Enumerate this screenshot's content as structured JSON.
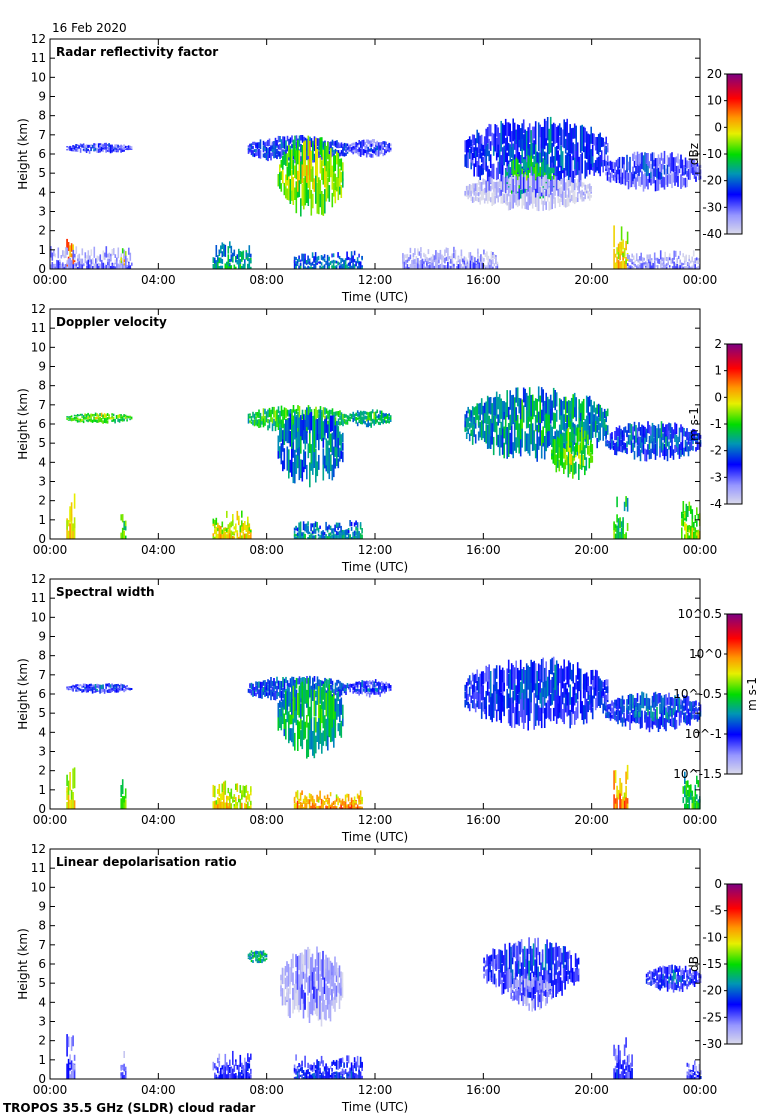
{
  "date": "16 Feb 2020",
  "footer": "TROPOS 35.5 GHz (SLDR) cloud radar",
  "chart_data": [
    {
      "type": "heatmap",
      "title": "Radar reflectivity factor",
      "xlabel": "Time (UTC)",
      "ylabel": "Height (km)",
      "xlim": [
        0,
        24
      ],
      "ylim": [
        0,
        12
      ],
      "xticks": [
        "00:00",
        "04:00",
        "08:00",
        "12:00",
        "16:00",
        "20:00",
        "00:00"
      ],
      "yticks": [
        "0",
        "1",
        "2",
        "3",
        "4",
        "5",
        "6",
        "7",
        "8",
        "9",
        "10",
        "11",
        "12"
      ],
      "colorbar": {
        "label": "dBz",
        "range": [
          -40,
          20
        ],
        "ticks": [
          "20",
          "10",
          "0",
          "-10",
          "-20",
          "-30",
          "-40"
        ]
      },
      "regions": [
        {
          "t": [
            0.6,
            0.9
          ],
          "z": [
            0,
            2.5
          ],
          "v": 2
        },
        {
          "t": [
            2.6,
            2.8
          ],
          "z": [
            0,
            1.6
          ],
          "v": -5
        },
        {
          "t": [
            0.6,
            3.0
          ],
          "z": [
            6.0,
            6.6
          ],
          "v": -30
        },
        {
          "t": [
            0.0,
            3.0
          ],
          "z": [
            0,
            1.2
          ],
          "v": -38
        },
        {
          "t": [
            6.0,
            7.4
          ],
          "z": [
            0,
            1.5
          ],
          "v": -20
        },
        {
          "t": [
            7.3,
            11.0
          ],
          "z": [
            5.5,
            7.0
          ],
          "v": -25
        },
        {
          "t": [
            8.4,
            10.8
          ],
          "z": [
            2.6,
            7.0
          ],
          "v": -8
        },
        {
          "t": [
            11.0,
            12.6
          ],
          "z": [
            5.8,
            6.8
          ],
          "v": -30
        },
        {
          "t": [
            9.0,
            11.5
          ],
          "z": [
            0,
            1.0
          ],
          "v": -24
        },
        {
          "t": [
            13.0,
            16.5
          ],
          "z": [
            0,
            1.2
          ],
          "v": -38
        },
        {
          "t": [
            15.3,
            20.6
          ],
          "z": [
            4.0,
            8.0
          ],
          "v": -26
        },
        {
          "t": [
            16.8,
            18.6
          ],
          "z": [
            3.5,
            6.0
          ],
          "v": -14
        },
        {
          "t": [
            15.3,
            20.0
          ],
          "z": [
            3.0,
            5.0
          ],
          "v": -38
        },
        {
          "t": [
            20.5,
            24.0
          ],
          "z": [
            4.0,
            6.2
          ],
          "v": -30
        },
        {
          "t": [
            20.8,
            21.3
          ],
          "z": [
            0,
            2.3
          ],
          "v": -5
        },
        {
          "t": [
            21.3,
            24.0
          ],
          "z": [
            0,
            1.0
          ],
          "v": -38
        }
      ]
    },
    {
      "type": "heatmap",
      "title": "Doppler velocity",
      "xlabel": "Time (UTC)",
      "ylabel": "Height (km)",
      "xlim": [
        0,
        24
      ],
      "ylim": [
        0,
        12
      ],
      "xticks": [
        "00:00",
        "04:00",
        "08:00",
        "12:00",
        "16:00",
        "20:00",
        "00:00"
      ],
      "yticks": [
        "0",
        "1",
        "2",
        "3",
        "4",
        "5",
        "6",
        "7",
        "8",
        "9",
        "10",
        "11",
        "12"
      ],
      "colorbar": {
        "label": "m s-1",
        "range": [
          -4,
          2
        ],
        "ticks": [
          "2",
          "1",
          "0",
          "-1",
          "-2",
          "-3",
          "-4"
        ]
      },
      "regions": [
        {
          "t": [
            0.6,
            0.9
          ],
          "z": [
            0,
            2.6
          ],
          "v": -0.5
        },
        {
          "t": [
            2.6,
            2.8
          ],
          "z": [
            0,
            1.6
          ],
          "v": -1.2
        },
        {
          "t": [
            0.6,
            3.0
          ],
          "z": [
            6.0,
            6.6
          ],
          "v": -1.0
        },
        {
          "t": [
            6.0,
            7.4
          ],
          "z": [
            0,
            1.5
          ],
          "v": -0.6
        },
        {
          "t": [
            7.3,
            11.0
          ],
          "z": [
            5.5,
            7.0
          ],
          "v": -1.3
        },
        {
          "t": [
            8.4,
            10.8
          ],
          "z": [
            2.6,
            7.0
          ],
          "v": -2.0
        },
        {
          "t": [
            11.0,
            12.6
          ],
          "z": [
            5.8,
            6.8
          ],
          "v": -1.6
        },
        {
          "t": [
            9.0,
            11.5
          ],
          "z": [
            0,
            1.0
          ],
          "v": -2.2
        },
        {
          "t": [
            15.3,
            20.6
          ],
          "z": [
            4.0,
            8.0
          ],
          "v": -1.8
        },
        {
          "t": [
            18.5,
            20.0
          ],
          "z": [
            3.0,
            6.0
          ],
          "v": -1.1
        },
        {
          "t": [
            20.5,
            24.0
          ],
          "z": [
            4.0,
            6.2
          ],
          "v": -2.4
        },
        {
          "t": [
            20.8,
            21.3
          ],
          "z": [
            0,
            2.3
          ],
          "v": -1.5
        },
        {
          "t": [
            23.3,
            24.0
          ],
          "z": [
            0,
            2.0
          ],
          "v": -1.0
        }
      ]
    },
    {
      "type": "heatmap",
      "title": "Spectral width",
      "xlabel": "Time (UTC)",
      "ylabel": "Height (km)",
      "xlim": [
        0,
        24
      ],
      "ylim": [
        0,
        12
      ],
      "xticks": [
        "00:00",
        "04:00",
        "08:00",
        "12:00",
        "16:00",
        "20:00",
        "00:00"
      ],
      "yticks": [
        "0",
        "1",
        "2",
        "3",
        "4",
        "5",
        "6",
        "7",
        "8",
        "9",
        "10",
        "11",
        "12"
      ],
      "colorbar": {
        "label": "m s-1",
        "scale": "log",
        "range": [
          0.0316,
          3.16
        ],
        "ticks": [
          "10^0.5",
          "10^0",
          "10^-0.5",
          "10^-1",
          "10^-1.5"
        ]
      },
      "regions": [
        {
          "t": [
            0.6,
            0.9
          ],
          "z": [
            0,
            2.6
          ],
          "v": 0.4
        },
        {
          "t": [
            2.6,
            2.8
          ],
          "z": [
            0,
            1.6
          ],
          "v": 0.3
        },
        {
          "t": [
            0.6,
            3.0
          ],
          "z": [
            6.0,
            6.6
          ],
          "v": 0.08
        },
        {
          "t": [
            6.0,
            7.4
          ],
          "z": [
            0,
            1.5
          ],
          "v": 0.4
        },
        {
          "t": [
            7.3,
            11.0
          ],
          "z": [
            5.5,
            7.0
          ],
          "v": 0.12
        },
        {
          "t": [
            8.4,
            10.8
          ],
          "z": [
            2.6,
            7.0
          ],
          "v": 0.2
        },
        {
          "t": [
            11.0,
            12.6
          ],
          "z": [
            5.8,
            6.8
          ],
          "v": 0.08
        },
        {
          "t": [
            9.0,
            11.5
          ],
          "z": [
            0,
            1.0
          ],
          "v": 0.6
        },
        {
          "t": [
            15.3,
            20.6
          ],
          "z": [
            4.0,
            8.0
          ],
          "v": 0.09
        },
        {
          "t": [
            20.5,
            24.0
          ],
          "z": [
            4.0,
            6.2
          ],
          "v": 0.1
        },
        {
          "t": [
            20.8,
            21.3
          ],
          "z": [
            0,
            2.3
          ],
          "v": 0.6
        },
        {
          "t": [
            23.3,
            24.0
          ],
          "z": [
            0,
            2.0
          ],
          "v": 0.2
        }
      ]
    },
    {
      "type": "heatmap",
      "title": "Linear depolarisation ratio",
      "xlabel": "Time (UTC)",
      "ylabel": "Height (km)",
      "xlim": [
        0,
        24
      ],
      "ylim": [
        0,
        12
      ],
      "xticks": [
        "00:00",
        "04:00",
        "08:00",
        "12:00",
        "16:00",
        "20:00",
        "00:00"
      ],
      "yticks": [
        "0",
        "1",
        "2",
        "3",
        "4",
        "5",
        "6",
        "7",
        "8",
        "9",
        "10",
        "11",
        "12"
      ],
      "colorbar": {
        "label": "dB",
        "range": [
          -30,
          0
        ],
        "ticks": [
          "0",
          "-5",
          "-10",
          "-15",
          "-20",
          "-25",
          "-30"
        ]
      },
      "regions": [
        {
          "t": [
            0.6,
            0.9
          ],
          "z": [
            0,
            2.4
          ],
          "v": -27
        },
        {
          "t": [
            2.6,
            2.8
          ],
          "z": [
            0,
            1.6
          ],
          "v": -27
        },
        {
          "t": [
            6.0,
            7.4
          ],
          "z": [
            0,
            1.5
          ],
          "v": -26
        },
        {
          "t": [
            7.3,
            8.0
          ],
          "z": [
            6.0,
            6.8
          ],
          "v": -18
        },
        {
          "t": [
            8.5,
            10.8
          ],
          "z": [
            2.6,
            7.0
          ],
          "v": -28
        },
        {
          "t": [
            9.0,
            11.5
          ],
          "z": [
            0,
            1.3
          ],
          "v": -25
        },
        {
          "t": [
            16.0,
            19.5
          ],
          "z": [
            4.0,
            7.4
          ],
          "v": -24
        },
        {
          "t": [
            17.0,
            18.5
          ],
          "z": [
            3.5,
            5.5
          ],
          "v": -27
        },
        {
          "t": [
            22.0,
            24.0
          ],
          "z": [
            4.5,
            6.0
          ],
          "v": -24
        },
        {
          "t": [
            20.8,
            21.5
          ],
          "z": [
            0,
            2.4
          ],
          "v": -26
        },
        {
          "t": [
            23.5,
            24.0
          ],
          "z": [
            0,
            1.0
          ],
          "v": -27
        }
      ]
    }
  ]
}
